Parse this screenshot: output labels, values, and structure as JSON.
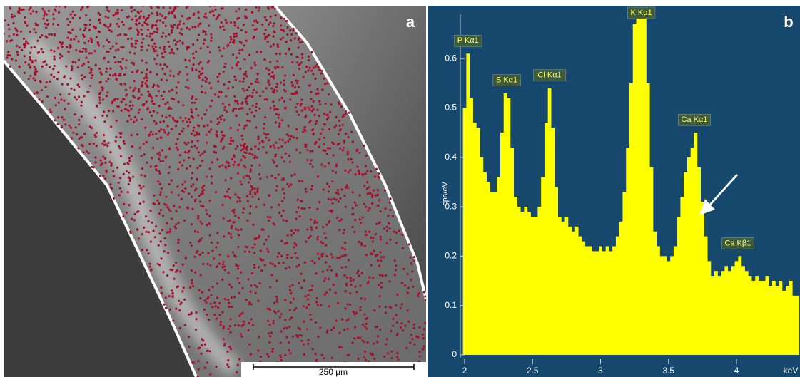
{
  "panel_a": {
    "label": "a",
    "scale_bar": "250 µm"
  },
  "chart_data": {
    "type": "area",
    "panel_label": "b",
    "y_label": "cps/eV",
    "x_label": "keV",
    "color": "#ffff00",
    "xlim": [
      1.95,
      4.46
    ],
    "ylim": [
      0,
      0.7
    ],
    "xticks": [
      2,
      2.5,
      3,
      3.5,
      4
    ],
    "yticks": [
      0,
      0.1,
      0.2,
      0.3,
      0.4,
      0.5,
      0.6
    ],
    "annotations": [
      {
        "text": "P Kα1",
        "x": 2.025,
        "y": 0.61
      },
      {
        "text": "S Kα1",
        "x": 2.31,
        "y": 0.53
      },
      {
        "text": "Cl Kα1",
        "x": 2.625,
        "y": 0.54
      },
      {
        "text": "K Kα1",
        "x": 3.3,
        "y": 0.7
      },
      {
        "text": "Ca Kα1",
        "x": 3.69,
        "y": 0.45
      },
      {
        "text": "Ca Kβ1",
        "x": 4.01,
        "y": 0.2
      }
    ],
    "x": [
      2.0,
      2.025,
      2.05,
      2.075,
      2.1,
      2.125,
      2.15,
      2.175,
      2.2,
      2.225,
      2.25,
      2.275,
      2.3,
      2.325,
      2.35,
      2.375,
      2.4,
      2.425,
      2.45,
      2.475,
      2.5,
      2.525,
      2.55,
      2.575,
      2.6,
      2.625,
      2.65,
      2.675,
      2.7,
      2.725,
      2.75,
      2.775,
      2.8,
      2.825,
      2.85,
      2.875,
      2.9,
      2.925,
      2.95,
      2.975,
      3.0,
      3.025,
      3.05,
      3.075,
      3.1,
      3.125,
      3.15,
      3.175,
      3.2,
      3.225,
      3.25,
      3.275,
      3.3,
      3.325,
      3.35,
      3.375,
      3.4,
      3.425,
      3.45,
      3.475,
      3.5,
      3.525,
      3.55,
      3.575,
      3.6,
      3.625,
      3.65,
      3.675,
      3.7,
      3.725,
      3.75,
      3.775,
      3.8,
      3.825,
      3.85,
      3.875,
      3.9,
      3.925,
      3.95,
      3.975,
      4.0,
      4.025,
      4.05,
      4.075,
      4.1,
      4.125,
      4.15,
      4.175,
      4.2,
      4.225,
      4.25,
      4.275,
      4.3,
      4.325,
      4.35,
      4.375,
      4.4,
      4.425,
      4.45
    ],
    "values": [
      0.5,
      0.61,
      0.52,
      0.47,
      0.46,
      0.4,
      0.37,
      0.35,
      0.33,
      0.33,
      0.36,
      0.45,
      0.53,
      0.52,
      0.42,
      0.32,
      0.3,
      0.29,
      0.3,
      0.29,
      0.28,
      0.28,
      0.3,
      0.36,
      0.47,
      0.54,
      0.46,
      0.34,
      0.28,
      0.27,
      0.28,
      0.26,
      0.25,
      0.26,
      0.24,
      0.23,
      0.22,
      0.22,
      0.21,
      0.21,
      0.22,
      0.21,
      0.22,
      0.21,
      0.22,
      0.24,
      0.27,
      0.33,
      0.42,
      0.55,
      0.67,
      0.7,
      0.7,
      0.7,
      0.55,
      0.38,
      0.25,
      0.22,
      0.2,
      0.2,
      0.19,
      0.2,
      0.22,
      0.28,
      0.32,
      0.37,
      0.4,
      0.42,
      0.45,
      0.38,
      0.31,
      0.24,
      0.19,
      0.16,
      0.17,
      0.16,
      0.17,
      0.18,
      0.17,
      0.18,
      0.19,
      0.2,
      0.18,
      0.17,
      0.16,
      0.15,
      0.16,
      0.15,
      0.15,
      0.16,
      0.14,
      0.15,
      0.14,
      0.15,
      0.13,
      0.14,
      0.15,
      0.12,
      0.12
    ]
  }
}
